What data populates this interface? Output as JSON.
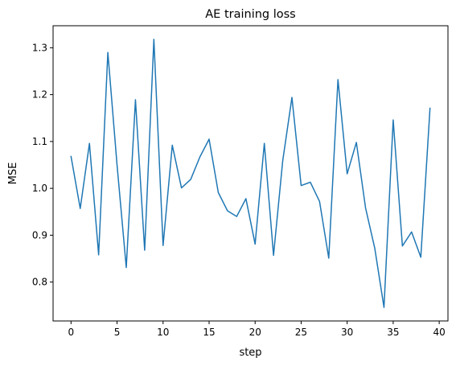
{
  "chart_data": {
    "type": "line",
    "title": "AE training loss",
    "xlabel": "step",
    "ylabel": "MSE",
    "xlim": [
      -1.95,
      40.95
    ],
    "ylim": [
      0.717,
      1.347
    ],
    "xticks": [
      0,
      5,
      10,
      15,
      20,
      25,
      30,
      35,
      40
    ],
    "yticks": [
      0.8,
      0.9,
      1.0,
      1.1,
      1.2,
      1.3
    ],
    "ytick_labels": [
      "0.8",
      "0.9",
      "1.0",
      "1.1",
      "1.2",
      "1.3"
    ],
    "grid": false,
    "series": [
      {
        "color": "#1f77b4",
        "x": [
          0,
          1,
          2,
          3,
          4,
          5,
          6,
          7,
          8,
          9,
          10,
          11,
          12,
          13,
          14,
          15,
          16,
          17,
          18,
          19,
          20,
          21,
          22,
          23,
          24,
          25,
          26,
          27,
          28,
          29,
          30,
          31,
          32,
          33,
          34,
          35,
          36,
          37,
          38,
          39
        ],
        "y": [
          1.068,
          0.957,
          1.096,
          0.858,
          1.29,
          1.05,
          0.831,
          1.189,
          0.868,
          1.318,
          0.878,
          1.092,
          1.001,
          1.019,
          1.067,
          1.105,
          0.991,
          0.952,
          0.94,
          0.978,
          0.881,
          1.096,
          0.857,
          1.059,
          1.194,
          1.006,
          1.013,
          0.972,
          0.851,
          1.232,
          1.031,
          1.098,
          0.958,
          0.872,
          0.746,
          1.146,
          0.877,
          0.907,
          0.853,
          1.171
        ]
      }
    ]
  }
}
